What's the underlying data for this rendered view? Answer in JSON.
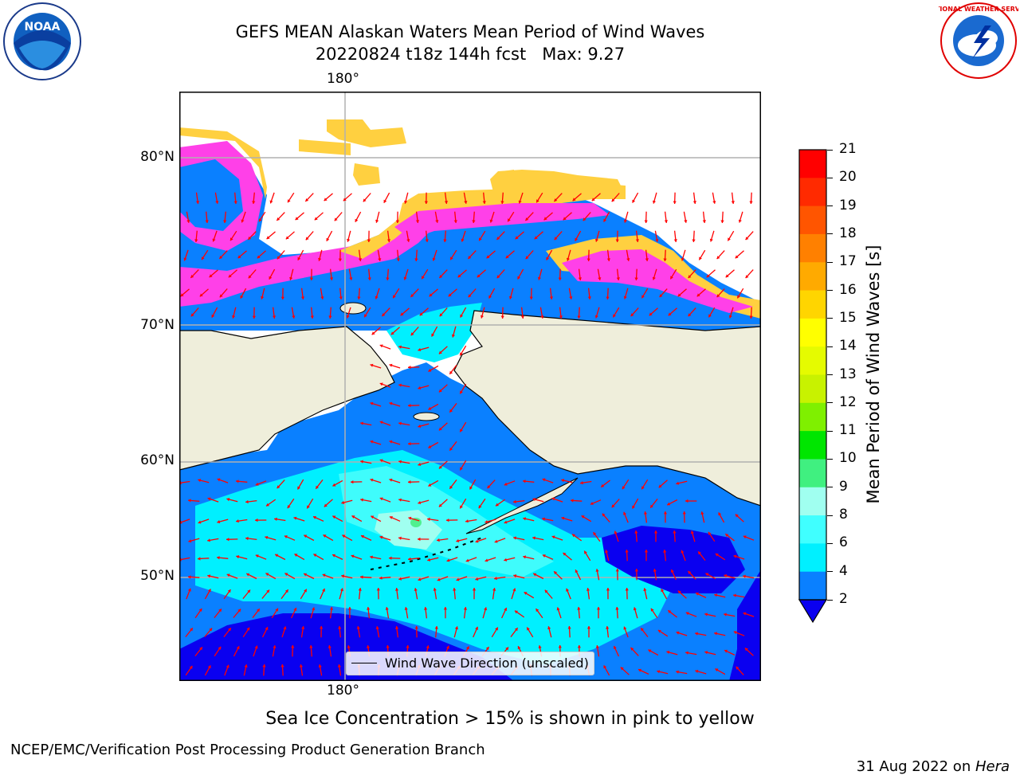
{
  "header": {
    "title_line1": "GEFS MEAN Alaskan Waters Mean Period of Wind Waves",
    "title_line2": "20220824 t18z 144h fcst   Max: 9.27"
  },
  "logos": {
    "noara": "NOAA",
    "nws_text": "NATIONAL WEATHER SERVICE"
  },
  "map": {
    "lon_label_top": "180°",
    "lon_label_bottom": "180°",
    "lat_labels": [
      "80°N",
      "70°N",
      "60°N",
      "50°N"
    ],
    "legend_label": "Wind Wave Direction (unscaled)",
    "colors": {
      "land": "#efeedb",
      "ocean_2_4": "#0a80ff",
      "ocean_4_6": "#00f0ff",
      "ocean_6_8": "#3ffcfc",
      "ocean_lt2": "#0a00f0",
      "ice_pink": "#ff30e0",
      "ice_yellow": "#ffd040",
      "arrow": "#ff0000"
    }
  },
  "colorbar": {
    "label": "Mean Period of Wind Waves [s]",
    "ticks": [
      "21",
      "20",
      "19",
      "18",
      "17",
      "16",
      "15",
      "14",
      "13",
      "12",
      "11",
      "10",
      "9",
      "8",
      "6",
      "4",
      "2"
    ],
    "colors": [
      "#ff0000",
      "#ff2a00",
      "#ff5500",
      "#ff8000",
      "#ffaa00",
      "#ffd500",
      "#ffff00",
      "#e5fb00",
      "#c8f200",
      "#7ff000",
      "#00e600",
      "#40f080",
      "#a0fff0",
      "#40ffff",
      "#00f0ff",
      "#0a80ff"
    ],
    "under_color": "#0a00f0"
  },
  "caption": "Sea Ice Concentration > 15% is shown in pink to yellow",
  "footer": {
    "left": "NCEP/EMC/Verification Post Processing Product Generation Branch",
    "right_date": "31 Aug 2022 on ",
    "right_machine": "Hera"
  }
}
